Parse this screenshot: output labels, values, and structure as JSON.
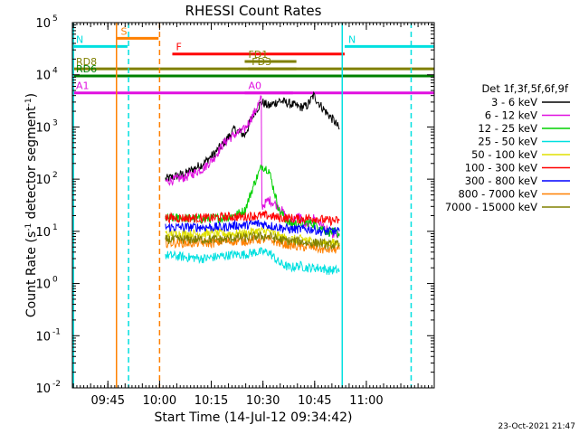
{
  "chart_data": {
    "type": "line",
    "title": "RHESSI Count Rates",
    "xlabel": "Start Time (14-Jul-12 09:34:42)",
    "ylabel_prefix": "Count Rate (s",
    "ylabel_sup1": "-1",
    "ylabel_middle": " detector segment",
    "ylabel_sup2": "-1",
    "ylabel_suffix": ")",
    "ylog": true,
    "ylim": [
      0.01,
      100000
    ],
    "xlim_minutes": [
      0,
      105
    ],
    "xtick_labels": [
      "09:45",
      "10:00",
      "10:15",
      "10:30",
      "10:45",
      "11:00"
    ],
    "xtick_minutes": [
      10.3,
      25.3,
      40.3,
      55.3,
      70.3,
      85.3
    ],
    "ytick_exponents": [
      -2,
      -1,
      0,
      1,
      2,
      3,
      4,
      5
    ],
    "timestamp": "23-Oct-2021 21:47",
    "legend": {
      "title": "Det 1f,3f,5f,6f,9f",
      "position": "right"
    },
    "series": [
      {
        "name": "3 - 6 keV",
        "color": "#000000",
        "points": [
          [
            27,
            100
          ],
          [
            33,
            130
          ],
          [
            38,
            200
          ],
          [
            41,
            300
          ],
          [
            44,
            500
          ],
          [
            47,
            900
          ],
          [
            50,
            700
          ],
          [
            53,
            2000
          ],
          [
            55,
            3000
          ],
          [
            57,
            2500
          ],
          [
            60,
            3200
          ],
          [
            63,
            2800
          ],
          [
            66,
            2400
          ],
          [
            68,
            2500
          ],
          [
            70,
            4000
          ],
          [
            72,
            2600
          ],
          [
            74,
            1800
          ],
          [
            76,
            1300
          ],
          [
            77.5,
            900
          ]
        ]
      },
      {
        "name": "6 - 12 keV",
        "color": "#e010e0",
        "points": [
          [
            27,
            90
          ],
          [
            33,
            110
          ],
          [
            38,
            160
          ],
          [
            41,
            250
          ],
          [
            44,
            500
          ],
          [
            47,
            700
          ],
          [
            50,
            900
          ],
          [
            53,
            2000
          ],
          [
            54.8,
            3500
          ],
          [
            55,
            30
          ],
          [
            57,
            40
          ],
          [
            60,
            30
          ],
          [
            63,
            15
          ],
          [
            66,
            20
          ],
          [
            68,
            12
          ],
          [
            70,
            18
          ],
          [
            72,
            14
          ],
          [
            74,
            10
          ],
          [
            77.5,
            8
          ]
        ]
      },
      {
        "name": "12 - 25 keV",
        "color": "#00d000",
        "points": [
          [
            27,
            18
          ],
          [
            33,
            18
          ],
          [
            38,
            17
          ],
          [
            41,
            18
          ],
          [
            44,
            18
          ],
          [
            47,
            20
          ],
          [
            50,
            25
          ],
          [
            53,
            90
          ],
          [
            55,
            180
          ],
          [
            57,
            150
          ],
          [
            60,
            25
          ],
          [
            63,
            14
          ],
          [
            66,
            14
          ],
          [
            68,
            15
          ],
          [
            70,
            14
          ],
          [
            72,
            12
          ],
          [
            74,
            10
          ],
          [
            77.5,
            9
          ]
        ]
      },
      {
        "name": "25 - 50 keV",
        "color": "#00e0e0",
        "points": [
          [
            27,
            3.5
          ],
          [
            33,
            3.2
          ],
          [
            38,
            3
          ],
          [
            41,
            3.2
          ],
          [
            44,
            3.4
          ],
          [
            47,
            3.6
          ],
          [
            50,
            3.6
          ],
          [
            53,
            4
          ],
          [
            55,
            4
          ],
          [
            57,
            4
          ],
          [
            60,
            2.5
          ],
          [
            63,
            2
          ],
          [
            66,
            2.2
          ],
          [
            68,
            2
          ],
          [
            70,
            2
          ],
          [
            72,
            2
          ],
          [
            74,
            1.8
          ],
          [
            77.5,
            1.8
          ]
        ]
      },
      {
        "name": "50 - 100 keV",
        "color": "#e0e000",
        "points": [
          [
            27,
            9
          ],
          [
            33,
            9
          ],
          [
            38,
            9
          ],
          [
            41,
            9
          ],
          [
            44,
            9
          ],
          [
            47,
            9
          ],
          [
            50,
            9
          ],
          [
            53,
            10
          ],
          [
            55,
            10
          ],
          [
            57,
            10
          ],
          [
            60,
            8
          ],
          [
            63,
            7
          ],
          [
            66,
            7
          ],
          [
            68,
            7
          ],
          [
            70,
            6
          ],
          [
            72,
            6
          ],
          [
            74,
            6
          ],
          [
            77.5,
            6
          ]
        ]
      },
      {
        "name": "100 - 300 keV",
        "color": "#ff0000",
        "points": [
          [
            27,
            18
          ],
          [
            33,
            18
          ],
          [
            38,
            18
          ],
          [
            41,
            18
          ],
          [
            44,
            19
          ],
          [
            47,
            19
          ],
          [
            50,
            19
          ],
          [
            53,
            20
          ],
          [
            55,
            20
          ],
          [
            57,
            20
          ],
          [
            60,
            18
          ],
          [
            63,
            18
          ],
          [
            66,
            17
          ],
          [
            68,
            18
          ],
          [
            70,
            18
          ],
          [
            72,
            17
          ],
          [
            74,
            16
          ],
          [
            77.5,
            16
          ]
        ]
      },
      {
        "name": "300 - 800 keV",
        "color": "#0000ff",
        "points": [
          [
            27,
            12
          ],
          [
            33,
            12
          ],
          [
            38,
            12
          ],
          [
            41,
            12
          ],
          [
            44,
            12
          ],
          [
            47,
            13
          ],
          [
            50,
            13
          ],
          [
            53,
            14
          ],
          [
            55,
            14
          ],
          [
            57,
            13
          ],
          [
            60,
            12
          ],
          [
            63,
            11
          ],
          [
            66,
            11
          ],
          [
            68,
            11
          ],
          [
            70,
            11
          ],
          [
            72,
            10
          ],
          [
            74,
            10
          ],
          [
            77.5,
            10
          ]
        ]
      },
      {
        "name": "800 - 7000 keV",
        "color": "#ff8000",
        "points": [
          [
            27,
            6
          ],
          [
            33,
            6
          ],
          [
            38,
            6
          ],
          [
            41,
            6
          ],
          [
            44,
            6.5
          ],
          [
            47,
            6.5
          ],
          [
            50,
            6.5
          ],
          [
            53,
            7
          ],
          [
            55,
            7
          ],
          [
            57,
            7
          ],
          [
            60,
            6
          ],
          [
            63,
            5.5
          ],
          [
            66,
            5
          ],
          [
            68,
            5
          ],
          [
            70,
            5
          ],
          [
            72,
            4.5
          ],
          [
            74,
            4.5
          ],
          [
            77.5,
            4.5
          ]
        ]
      },
      {
        "name": "7000 - 15000 keV",
        "color": "#808000",
        "points": [
          [
            27,
            7
          ],
          [
            33,
            7
          ],
          [
            38,
            7
          ],
          [
            41,
            7
          ],
          [
            44,
            7
          ],
          [
            47,
            7.5
          ],
          [
            50,
            7.5
          ],
          [
            53,
            8
          ],
          [
            55,
            8
          ],
          [
            57,
            8
          ],
          [
            60,
            7
          ],
          [
            63,
            6.5
          ],
          [
            66,
            6.5
          ],
          [
            68,
            6
          ],
          [
            70,
            6
          ],
          [
            72,
            6
          ],
          [
            74,
            5.5
          ],
          [
            77.5,
            5.5
          ]
        ]
      }
    ],
    "flags": [
      {
        "label": "S",
        "color": "#ff8000",
        "start": 13.0,
        "end": 25.0,
        "y": 50000
      },
      {
        "label": "N",
        "color": "#00e0e0",
        "start": 0,
        "end": 16.0,
        "y": 35000
      },
      {
        "label": "N",
        "color": "#00e0e0",
        "start": 79.0,
        "end": 105,
        "y": 35000
      },
      {
        "label": "F",
        "color": "#ff0000",
        "start": 29.0,
        "end": 79.0,
        "y": 25000
      },
      {
        "label": "FD1",
        "color": "#808000",
        "start": 50.0,
        "end": 65.0,
        "y": 18000
      },
      {
        "label": "FD3",
        "color": "#808000",
        "start": 51.0,
        "end": 65.0,
        "y": 13000
      },
      {
        "label": "RD8",
        "color": "#808000",
        "start": 0,
        "end": 105,
        "y": 13000
      },
      {
        "label": "RD6",
        "color": "#008000",
        "start": 0,
        "end": 105,
        "y": 9500
      },
      {
        "label": "A1",
        "color": "#e010e0",
        "start": 0,
        "end": 105,
        "y": 4500
      },
      {
        "label": "A0",
        "color": "#e010e0",
        "start": 50.0,
        "end": 64.0,
        "y": 4500
      }
    ],
    "vertical_lines": [
      {
        "minute": 0.3,
        "color": "#00e0e0",
        "style": "solid"
      },
      {
        "minute": 12.8,
        "color": "#ff8000",
        "style": "solid"
      },
      {
        "minute": 16.3,
        "color": "#00e0e0",
        "style": "dashed"
      },
      {
        "minute": 25.3,
        "color": "#ff8000",
        "style": "dashed"
      },
      {
        "minute": 78.3,
        "color": "#00e0e0",
        "style": "solid"
      },
      {
        "minute": 98.3,
        "color": "#00e0e0",
        "style": "dashed"
      }
    ]
  }
}
